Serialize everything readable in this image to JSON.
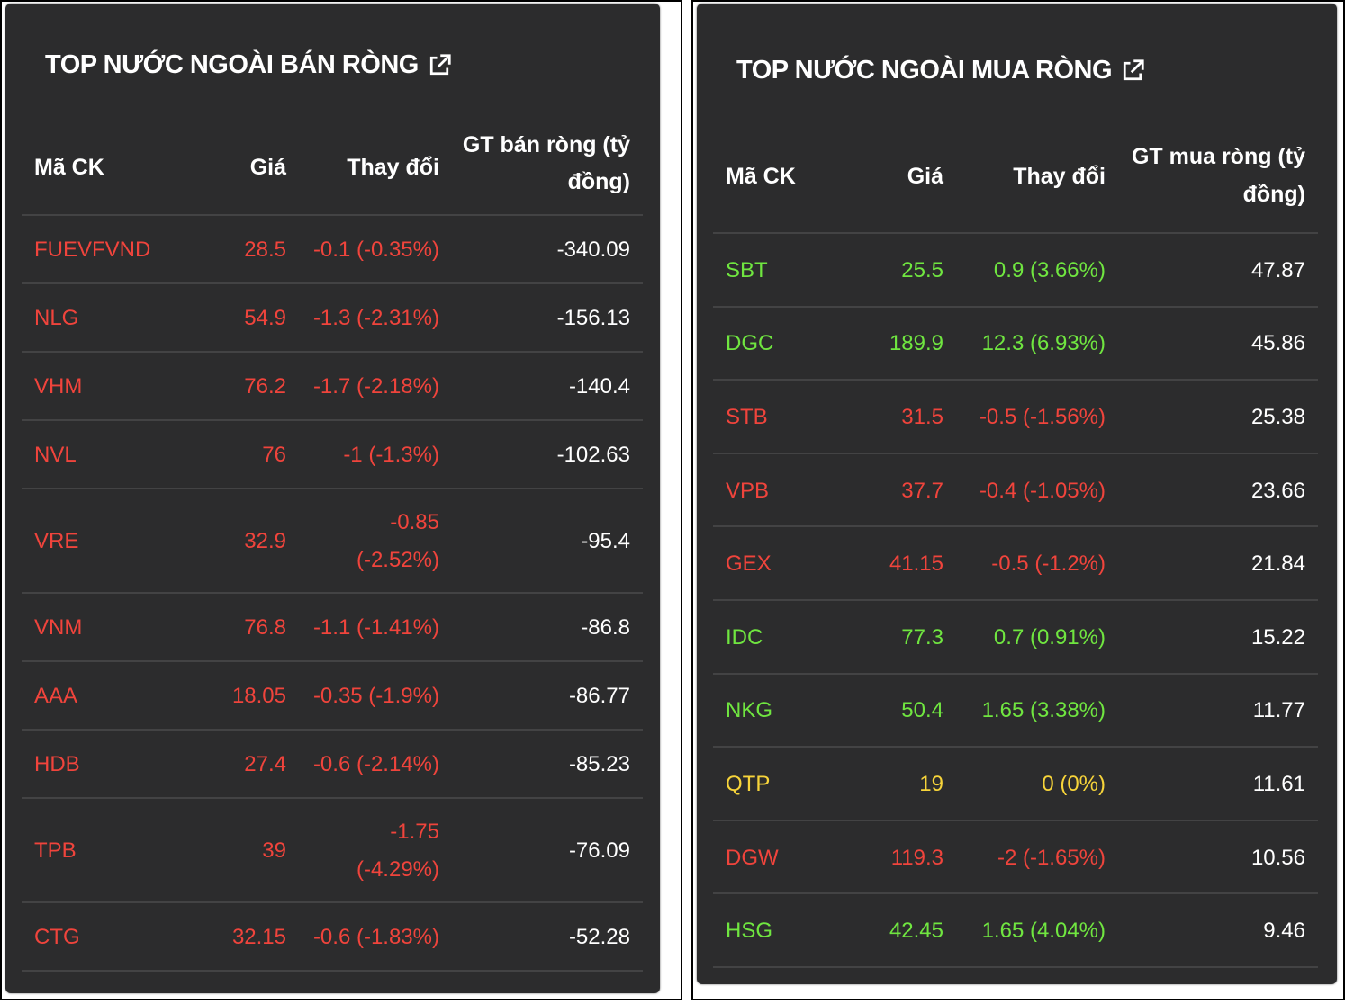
{
  "sell": {
    "title": "TOP NƯỚC NGOÀI BÁN RÒNG",
    "columns": [
      "Mã CK",
      "Giá",
      "Thay đổi",
      "GT bán ròng (tỷ",
      "đồng)"
    ],
    "rows": [
      {
        "code": "FUEVFVND",
        "price": "28.5",
        "change": "-0.1 (-0.35%)",
        "change2": "",
        "value": "-340.09",
        "status": "red"
      },
      {
        "code": "NLG",
        "price": "54.9",
        "change": "-1.3 (-2.31%)",
        "change2": "",
        "value": "-156.13",
        "status": "red"
      },
      {
        "code": "VHM",
        "price": "76.2",
        "change": "-1.7 (-2.18%)",
        "change2": "",
        "value": "-140.4",
        "status": "red"
      },
      {
        "code": "NVL",
        "price": "76",
        "change": "-1 (-1.3%)",
        "change2": "",
        "value": "-102.63",
        "status": "red"
      },
      {
        "code": "VRE",
        "price": "32.9",
        "change": "-0.85",
        "change2": "(-2.52%)",
        "value": "-95.4",
        "status": "red"
      },
      {
        "code": "VNM",
        "price": "76.8",
        "change": "-1.1 (-1.41%)",
        "change2": "",
        "value": "-86.8",
        "status": "red"
      },
      {
        "code": "AAA",
        "price": "18.05",
        "change": "-0.35 (-1.9%)",
        "change2": "",
        "value": "-86.77",
        "status": "red"
      },
      {
        "code": "HDB",
        "price": "27.4",
        "change": "-0.6 (-2.14%)",
        "change2": "",
        "value": "-85.23",
        "status": "red"
      },
      {
        "code": "TPB",
        "price": "39",
        "change": "-1.75",
        "change2": "(-4.29%)",
        "value": "-76.09",
        "status": "red"
      },
      {
        "code": "CTG",
        "price": "32.15",
        "change": "-0.6 (-1.83%)",
        "change2": "",
        "value": "-52.28",
        "status": "red"
      }
    ]
  },
  "buy": {
    "title": "TOP NƯỚC NGOÀI MUA RÒNG",
    "columns": [
      "Mã CK",
      "Giá",
      "Thay đổi",
      "GT mua ròng (tỷ",
      "đồng)"
    ],
    "rows": [
      {
        "code": "SBT",
        "price": "25.5",
        "change": "0.9 (3.66%)",
        "value": "47.87",
        "status": "green"
      },
      {
        "code": "DGC",
        "price": "189.9",
        "change": "12.3 (6.93%)",
        "value": "45.86",
        "status": "green"
      },
      {
        "code": "STB",
        "price": "31.5",
        "change": "-0.5 (-1.56%)",
        "value": "25.38",
        "status": "red"
      },
      {
        "code": "VPB",
        "price": "37.7",
        "change": "-0.4 (-1.05%)",
        "value": "23.66",
        "status": "red"
      },
      {
        "code": "GEX",
        "price": "41.15",
        "change": "-0.5 (-1.2%)",
        "value": "21.84",
        "status": "red"
      },
      {
        "code": "IDC",
        "price": "77.3",
        "change": "0.7 (0.91%)",
        "value": "15.22",
        "status": "green"
      },
      {
        "code": "NKG",
        "price": "50.4",
        "change": "1.65 (3.38%)",
        "value": "11.77",
        "status": "green"
      },
      {
        "code": "QTP",
        "price": "19",
        "change": "0 (0%)",
        "value": "11.61",
        "status": "yellow"
      },
      {
        "code": "DGW",
        "price": "119.3",
        "change": "-2 (-1.65%)",
        "value": "10.56",
        "status": "red"
      },
      {
        "code": "HSG",
        "price": "42.45",
        "change": "1.65 (4.04%)",
        "value": "9.46",
        "status": "green"
      }
    ]
  },
  "colors": {
    "red": "#f0443c",
    "green": "#70e640",
    "yellow": "#f7d43a",
    "panel": "#2c2c2d"
  },
  "icons": {
    "title_link": "external-link-icon"
  }
}
